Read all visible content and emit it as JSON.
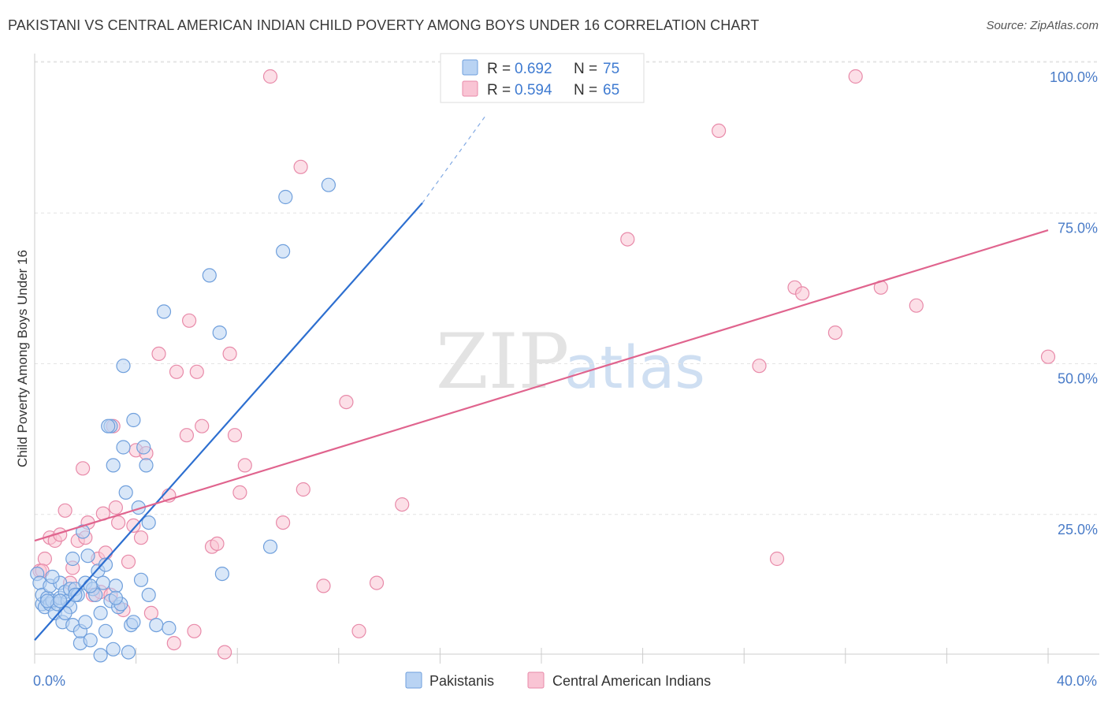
{
  "title": "PAKISTANI VS CENTRAL AMERICAN INDIAN CHILD POVERTY AMONG BOYS UNDER 16 CORRELATION CHART",
  "source": "Source: ZipAtlas.com",
  "watermark": {
    "zip": "ZIP",
    "atlas": "atlas"
  },
  "legend": {
    "rows": [
      {
        "r_label": "R =",
        "r_value": "0.692",
        "n_label": "N =",
        "n_value": "75",
        "color": "#b9d3f3"
      },
      {
        "r_label": "R =",
        "r_value": "0.594",
        "n_label": "N =",
        "n_value": "65",
        "color": "#f9c4d4"
      }
    ]
  },
  "bottom_legend": [
    {
      "label": "Pakistanis",
      "color": "#b9d3f3"
    },
    {
      "label": "Central American Indians",
      "color": "#f9c4d4"
    }
  ],
  "colors": {
    "blue_fill": "#b9d3f3",
    "blue_stroke": "#6f9fdc",
    "blue_line": "#2d6fd0",
    "pink_fill": "#f9c4d4",
    "pink_stroke": "#e88aa9",
    "pink_line": "#e0648e",
    "tick_label": "#4a7cc8"
  },
  "chart_data": {
    "type": "scatter",
    "title": "PAKISTANI VS CENTRAL AMERICAN INDIAN CHILD POVERTY AMONG BOYS UNDER 16 CORRELATION CHART",
    "xlabel": "",
    "ylabel": "Child Poverty Among Boys Under 16",
    "xlim": [
      0,
      40
    ],
    "ylim": [
      0,
      100
    ],
    "x_tick_labels": [
      "0.0%",
      "40.0%"
    ],
    "y_ticks": [
      {
        "value": 100,
        "label": "100.0%"
      },
      {
        "value": 75,
        "label": "75.0%"
      },
      {
        "value": 50,
        "label": "50.0%"
      },
      {
        "value": 25,
        "label": "25.0%"
      }
    ],
    "grid": "horizontal dashed",
    "legend_position": "top-center",
    "series": [
      {
        "name": "Pakistanis",
        "R": 0.692,
        "N": 75,
        "trend": {
          "x": [
            0.0,
            15.3
          ],
          "y": [
            6.5,
            79.0
          ],
          "dashed_to": {
            "x": 17.8,
            "y": 93.5
          }
        },
        "points": [
          [
            0.1,
            17.5
          ],
          [
            0.2,
            16.0
          ],
          [
            0.3,
            12.5
          ],
          [
            0.3,
            14.0
          ],
          [
            0.4,
            12.0
          ],
          [
            0.5,
            13.5
          ],
          [
            0.6,
            12.5
          ],
          [
            0.6,
            15.5
          ],
          [
            0.7,
            13.0
          ],
          [
            0.8,
            11.0
          ],
          [
            0.9,
            12.5
          ],
          [
            1.0,
            13.5
          ],
          [
            1.0,
            16.0
          ],
          [
            1.1,
            9.5
          ],
          [
            1.2,
            14.5
          ],
          [
            1.3,
            13.0
          ],
          [
            1.4,
            12.0
          ],
          [
            1.4,
            15.0
          ],
          [
            1.5,
            9.0
          ],
          [
            1.5,
            20.0
          ],
          [
            1.6,
            15.0
          ],
          [
            1.7,
            14.0
          ],
          [
            1.8,
            6.0
          ],
          [
            1.8,
            8.0
          ],
          [
            1.9,
            24.5
          ],
          [
            2.0,
            16.0
          ],
          [
            2.1,
            20.5
          ],
          [
            2.2,
            6.5
          ],
          [
            2.3,
            15.0
          ],
          [
            2.4,
            14.0
          ],
          [
            2.5,
            18.0
          ],
          [
            2.6,
            4.0
          ],
          [
            2.6,
            11.0
          ],
          [
            2.7,
            16.0
          ],
          [
            2.8,
            8.0
          ],
          [
            2.8,
            19.0
          ],
          [
            3.0,
            13.0
          ],
          [
            3.1,
            5.0
          ],
          [
            3.1,
            35.5
          ],
          [
            3.2,
            15.5
          ],
          [
            3.3,
            12.0
          ],
          [
            3.4,
            12.5
          ],
          [
            3.5,
            38.5
          ],
          [
            3.5,
            52.0
          ],
          [
            3.6,
            31.0
          ],
          [
            3.7,
            4.5
          ],
          [
            3.8,
            9.0
          ],
          [
            3.9,
            43.0
          ],
          [
            4.1,
            28.5
          ],
          [
            4.2,
            16.5
          ],
          [
            4.3,
            38.5
          ],
          [
            4.4,
            35.5
          ],
          [
            4.5,
            26.0
          ],
          [
            4.5,
            14.0
          ],
          [
            4.8,
            9.0
          ],
          [
            5.1,
            61.0
          ],
          [
            5.3,
            8.5
          ],
          [
            6.9,
            67.0
          ],
          [
            7.3,
            57.5
          ],
          [
            7.4,
            17.5
          ],
          [
            9.3,
            22.0
          ],
          [
            9.8,
            71.0
          ],
          [
            9.9,
            80.0
          ],
          [
            11.6,
            82.0
          ],
          [
            3.0,
            42.0
          ],
          [
            1.2,
            11.0
          ],
          [
            0.5,
            13.0
          ],
          [
            2.0,
            9.5
          ],
          [
            3.9,
            9.5
          ],
          [
            1.0,
            13.0
          ],
          [
            0.7,
            17.0
          ],
          [
            2.2,
            15.5
          ],
          [
            1.6,
            14.0
          ],
          [
            3.2,
            13.5
          ],
          [
            2.9,
            42.0
          ]
        ]
      },
      {
        "name": "Central American Indians",
        "R": 0.594,
        "N": 65,
        "trend": {
          "x": [
            0.0,
            40.0
          ],
          "y": [
            23.0,
            74.5
          ]
        },
        "points": [
          [
            0.2,
            18.0
          ],
          [
            0.4,
            20.0
          ],
          [
            0.6,
            23.5
          ],
          [
            0.8,
            23.0
          ],
          [
            1.0,
            24.0
          ],
          [
            1.2,
            28.0
          ],
          [
            1.5,
            18.5
          ],
          [
            1.7,
            23.0
          ],
          [
            1.9,
            35.0
          ],
          [
            2.0,
            23.5
          ],
          [
            2.1,
            26.0
          ],
          [
            2.3,
            14.0
          ],
          [
            2.5,
            20.0
          ],
          [
            2.6,
            14.5
          ],
          [
            2.7,
            27.5
          ],
          [
            2.8,
            21.0
          ],
          [
            3.0,
            14.0
          ],
          [
            3.1,
            42.0
          ],
          [
            3.2,
            28.5
          ],
          [
            3.3,
            26.0
          ],
          [
            3.5,
            11.5
          ],
          [
            3.7,
            19.5
          ],
          [
            3.9,
            25.5
          ],
          [
            4.0,
            38.0
          ],
          [
            4.2,
            23.5
          ],
          [
            4.4,
            37.5
          ],
          [
            4.6,
            11.0
          ],
          [
            4.9,
            54.0
          ],
          [
            5.3,
            30.5
          ],
          [
            5.5,
            6.0
          ],
          [
            5.6,
            51.0
          ],
          [
            6.0,
            40.5
          ],
          [
            6.1,
            59.5
          ],
          [
            6.3,
            8.0
          ],
          [
            6.4,
            51.0
          ],
          [
            6.6,
            42.0
          ],
          [
            7.0,
            22.0
          ],
          [
            7.2,
            22.5
          ],
          [
            7.5,
            4.5
          ],
          [
            7.7,
            54.0
          ],
          [
            7.9,
            40.5
          ],
          [
            8.1,
            31.0
          ],
          [
            8.3,
            35.5
          ],
          [
            9.3,
            100.0
          ],
          [
            9.8,
            26.0
          ],
          [
            10.5,
            85.0
          ],
          [
            10.6,
            31.5
          ],
          [
            11.4,
            15.5
          ],
          [
            12.3,
            46.0
          ],
          [
            12.8,
            8.0
          ],
          [
            13.5,
            16.0
          ],
          [
            14.5,
            29.0
          ],
          [
            23.4,
            73.0
          ],
          [
            27.0,
            91.0
          ],
          [
            28.6,
            52.0
          ],
          [
            29.3,
            20.0
          ],
          [
            30.0,
            65.0
          ],
          [
            30.3,
            64.0
          ],
          [
            31.6,
            57.5
          ],
          [
            32.4,
            100.0
          ],
          [
            33.4,
            65.0
          ],
          [
            34.8,
            62.0
          ],
          [
            40.0,
            53.5
          ],
          [
            0.3,
            18.0
          ],
          [
            1.4,
            16.0
          ]
        ]
      }
    ]
  }
}
